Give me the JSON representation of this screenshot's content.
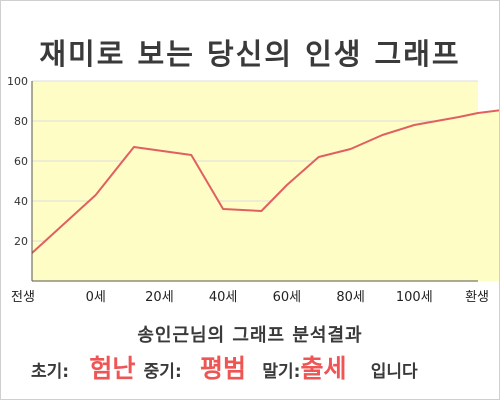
{
  "colors": {
    "line": "#e06060",
    "fill": "#fffdc6",
    "grid": "#dcdcdc",
    "axis": "#555555",
    "highlight": "#ee5555",
    "text": "#3a3a3a"
  },
  "chart_data": {
    "type": "area",
    "title": "재미로 보는 당신의 인생 그래프",
    "xlabel": "",
    "ylabel": "",
    "ylim": [
      0,
      100
    ],
    "y_ticks": [
      20,
      40,
      60,
      80,
      100
    ],
    "grid": true,
    "categories": [
      "전생",
      "0세",
      "20세",
      "40세",
      "60세",
      "80세",
      "100세",
      "환생"
    ],
    "x": [
      0,
      1,
      1.6,
      2.5,
      3,
      3.6,
      4,
      4.5,
      5,
      5.5,
      6,
      6.7,
      7,
      7.5,
      8,
      8.5,
      9,
      10
    ],
    "values": [
      14,
      43,
      67,
      63,
      36,
      35,
      48,
      62,
      66,
      73,
      78,
      82,
      84,
      86,
      88,
      90,
      91,
      91
    ]
  },
  "result": {
    "line1": "송인근님의 그래프 분석결과",
    "early_label": "초기:",
    "early_value": "험난",
    "mid_label": "중기:",
    "mid_value": "평범",
    "late_label": "말기:",
    "late_value": "출세",
    "ending": "입니다"
  }
}
